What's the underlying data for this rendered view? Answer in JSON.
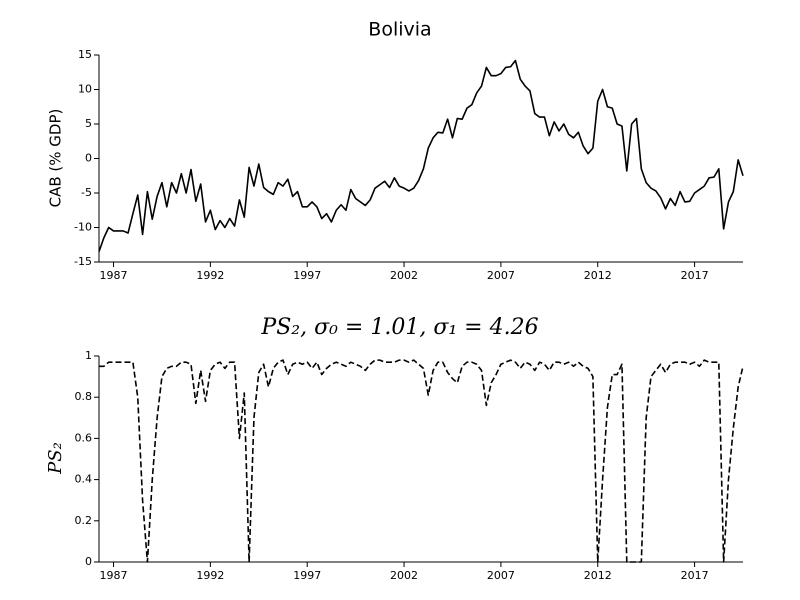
{
  "chart_data": [
    {
      "type": "line",
      "title": "Bolivia",
      "y_label": "CAB (% GDP)",
      "x": [
        1986.25,
        1986.5,
        1986.75,
        1987,
        1987.25,
        1987.5,
        1987.75,
        1988,
        1988.25,
        1988.5,
        1988.75,
        1989,
        1989.25,
        1989.5,
        1989.75,
        1990,
        1990.25,
        1990.5,
        1990.75,
        1991,
        1991.25,
        1991.5,
        1991.75,
        1992,
        1992.25,
        1992.5,
        1992.75,
        1993,
        1993.25,
        1993.5,
        1993.75,
        1994,
        1994.25,
        1994.5,
        1994.75,
        1995,
        1995.25,
        1995.5,
        1995.75,
        1996,
        1996.25,
        1996.5,
        1996.75,
        1997,
        1997.25,
        1997.5,
        1997.75,
        1998,
        1998.25,
        1998.5,
        1998.75,
        1999,
        1999.25,
        1999.5,
        1999.75,
        2000,
        2000.25,
        2000.5,
        2000.75,
        2001,
        2001.25,
        2001.5,
        2001.75,
        2002,
        2002.25,
        2002.5,
        2002.75,
        2003,
        2003.25,
        2003.5,
        2003.75,
        2004,
        2004.25,
        2004.5,
        2004.75,
        2005,
        2005.25,
        2005.5,
        2005.75,
        2006,
        2006.25,
        2006.5,
        2006.75,
        2007,
        2007.25,
        2007.5,
        2007.75,
        2008,
        2008.25,
        2008.5,
        2008.75,
        2009,
        2009.25,
        2009.5,
        2009.75,
        2010,
        2010.25,
        2010.5,
        2010.75,
        2011,
        2011.25,
        2011.5,
        2011.75,
        2012,
        2012.25,
        2012.5,
        2012.75,
        2013,
        2013.25,
        2013.5,
        2013.75,
        2014,
        2014.25,
        2014.5,
        2014.75,
        2015,
        2015.25,
        2015.5,
        2015.75,
        2016,
        2016.25,
        2016.5,
        2016.75,
        2017,
        2017.25,
        2017.5,
        2017.75,
        2018,
        2018.25,
        2018.5,
        2018.75,
        2019,
        2019.25,
        2019.5
      ],
      "series": [
        {
          "color": "#000000",
          "dashed": false,
          "values": [
            -13.5,
            -11.5,
            -10,
            -10.5,
            -10.5,
            -10.5,
            -10.8,
            -8,
            -5.3,
            -11,
            -4.8,
            -8.8,
            -5.5,
            -3.5,
            -7,
            -3.5,
            -5,
            -2.2,
            -5,
            -1.6,
            -6.2,
            -3.7,
            -9.2,
            -7.5,
            -10.3,
            -9,
            -10,
            -8.7,
            -9.8,
            -6,
            -8.5,
            -1.3,
            -4,
            -0.8,
            -4.2,
            -4.8,
            -5.2,
            -3.5,
            -4,
            -3,
            -5.5,
            -4.8,
            -7,
            -7,
            -6.3,
            -7,
            -8.7,
            -8,
            -9.2,
            -7.5,
            -6.7,
            -7.5,
            -4.5,
            -5.8,
            -6.3,
            -6.8,
            -6,
            -4.3,
            -3.8,
            -3.3,
            -4.2,
            -2.8,
            -4,
            -4.3,
            -4.7,
            -4.3,
            -3.2,
            -1.5,
            1.5,
            3,
            3.8,
            3.7,
            5.7,
            3,
            5.8,
            5.7,
            7.3,
            7.8,
            9.5,
            10.5,
            13.2,
            12,
            12,
            12.3,
            13.2,
            13.3,
            14.2,
            11.5,
            10.5,
            9.8,
            6.5,
            6,
            6,
            3.3,
            5.3,
            4,
            5,
            3.5,
            3,
            3.8,
            1.8,
            0.7,
            1.5,
            8.3,
            10,
            7.5,
            7.3,
            5,
            4.7,
            -1.8,
            5,
            5.8,
            -1.5,
            -3.5,
            -4.3,
            -4.7,
            -5.7,
            -7.3,
            -5.8,
            -6.8,
            -4.8,
            -6.3,
            -6.2,
            -5,
            -4.5,
            -4,
            -2.8,
            -2.7,
            -1.5,
            -10.2,
            -6.3,
            -4.8,
            -0.2,
            -2.5
          ]
        }
      ],
      "xlim": [
        1986.25,
        2019.5
      ],
      "xticks": [
        1987,
        1992,
        1997,
        2002,
        2007,
        2012,
        2017
      ],
      "ylim": [
        -15,
        15
      ],
      "yticks": [
        -15,
        -10,
        -5,
        0,
        5,
        10,
        15
      ]
    },
    {
      "type": "line",
      "title": "PS₂, σ₀ = 1.01, σ₁ = 4.26",
      "y_label": "PS₂",
      "x": [
        1986.25,
        1986.5,
        1986.75,
        1987,
        1987.25,
        1987.5,
        1987.75,
        1988,
        1988.25,
        1988.5,
        1988.75,
        1989,
        1989.25,
        1989.5,
        1989.75,
        1990,
        1990.25,
        1990.5,
        1990.75,
        1991,
        1991.25,
        1991.5,
        1991.75,
        1992,
        1992.25,
        1992.5,
        1992.75,
        1993,
        1993.25,
        1993.5,
        1993.75,
        1994,
        1994.25,
        1994.5,
        1994.75,
        1995,
        1995.25,
        1995.5,
        1995.75,
        1996,
        1996.25,
        1996.5,
        1996.75,
        1997,
        1997.25,
        1997.5,
        1997.75,
        1998,
        1998.25,
        1998.5,
        1998.75,
        1999,
        1999.25,
        1999.5,
        1999.75,
        2000,
        2000.25,
        2000.5,
        2000.75,
        2001,
        2001.25,
        2001.5,
        2001.75,
        2002,
        2002.25,
        2002.5,
        2002.75,
        2003,
        2003.25,
        2003.5,
        2003.75,
        2004,
        2004.25,
        2004.5,
        2004.75,
        2005,
        2005.25,
        2005.5,
        2005.75,
        2006,
        2006.25,
        2006.5,
        2006.75,
        2007,
        2007.25,
        2007.5,
        2007.75,
        2008,
        2008.25,
        2008.5,
        2008.75,
        2009,
        2009.25,
        2009.5,
        2009.75,
        2010,
        2010.25,
        2010.5,
        2010.75,
        2011,
        2011.25,
        2011.5,
        2011.75,
        2012,
        2012.25,
        2012.5,
        2012.75,
        2013,
        2013.25,
        2013.5,
        2013.75,
        2014,
        2014.25,
        2014.5,
        2014.75,
        2015,
        2015.25,
        2015.5,
        2015.75,
        2016,
        2016.25,
        2016.5,
        2016.75,
        2017,
        2017.25,
        2017.5,
        2017.75,
        2018,
        2018.25,
        2018.5,
        2018.75,
        2019,
        2019.25,
        2019.5
      ],
      "series": [
        {
          "color": "#000000",
          "dashed": true,
          "values": [
            0.95,
            0.95,
            0.97,
            0.97,
            0.97,
            0.97,
            0.97,
            0.97,
            0.8,
            0.3,
            0,
            0.4,
            0.7,
            0.9,
            0.94,
            0.95,
            0.95,
            0.97,
            0.97,
            0.96,
            0.77,
            0.93,
            0.78,
            0.93,
            0.96,
            0.97,
            0.94,
            0.97,
            0.97,
            0.6,
            0.82,
            0,
            0.7,
            0.92,
            0.96,
            0.85,
            0.94,
            0.97,
            0.98,
            0.91,
            0.96,
            0.97,
            0.96,
            0.97,
            0.94,
            0.97,
            0.91,
            0.94,
            0.96,
            0.97,
            0.96,
            0.95,
            0.97,
            0.96,
            0.95,
            0.93,
            0.96,
            0.98,
            0.98,
            0.97,
            0.97,
            0.97,
            0.98,
            0.98,
            0.97,
            0.98,
            0.96,
            0.94,
            0.81,
            0.93,
            0.97,
            0.97,
            0.92,
            0.89,
            0.87,
            0.95,
            0.97,
            0.97,
            0.96,
            0.93,
            0.76,
            0.87,
            0.91,
            0.96,
            0.97,
            0.98,
            0.97,
            0.94,
            0.97,
            0.96,
            0.93,
            0.97,
            0.96,
            0.93,
            0.97,
            0.97,
            0.96,
            0.97,
            0.95,
            0.97,
            0.95,
            0.94,
            0.9,
            0,
            0.4,
            0.75,
            0.91,
            0.91,
            0.96,
            0,
            0,
            0,
            0,
            0.7,
            0.9,
            0.93,
            0.96,
            0.92,
            0.96,
            0.97,
            0.97,
            0.97,
            0.96,
            0.97,
            0.95,
            0.98,
            0.97,
            0.97,
            0.97,
            0,
            0.4,
            0.65,
            0.85,
            0.95
          ]
        }
      ],
      "xlim": [
        1986.25,
        2019.5
      ],
      "xticks": [
        1987,
        1992,
        1997,
        2002,
        2007,
        2012,
        2017
      ],
      "ylim": [
        0,
        1
      ],
      "yticks": [
        0,
        0.2,
        0.4,
        0.6,
        0.8,
        1
      ]
    }
  ]
}
